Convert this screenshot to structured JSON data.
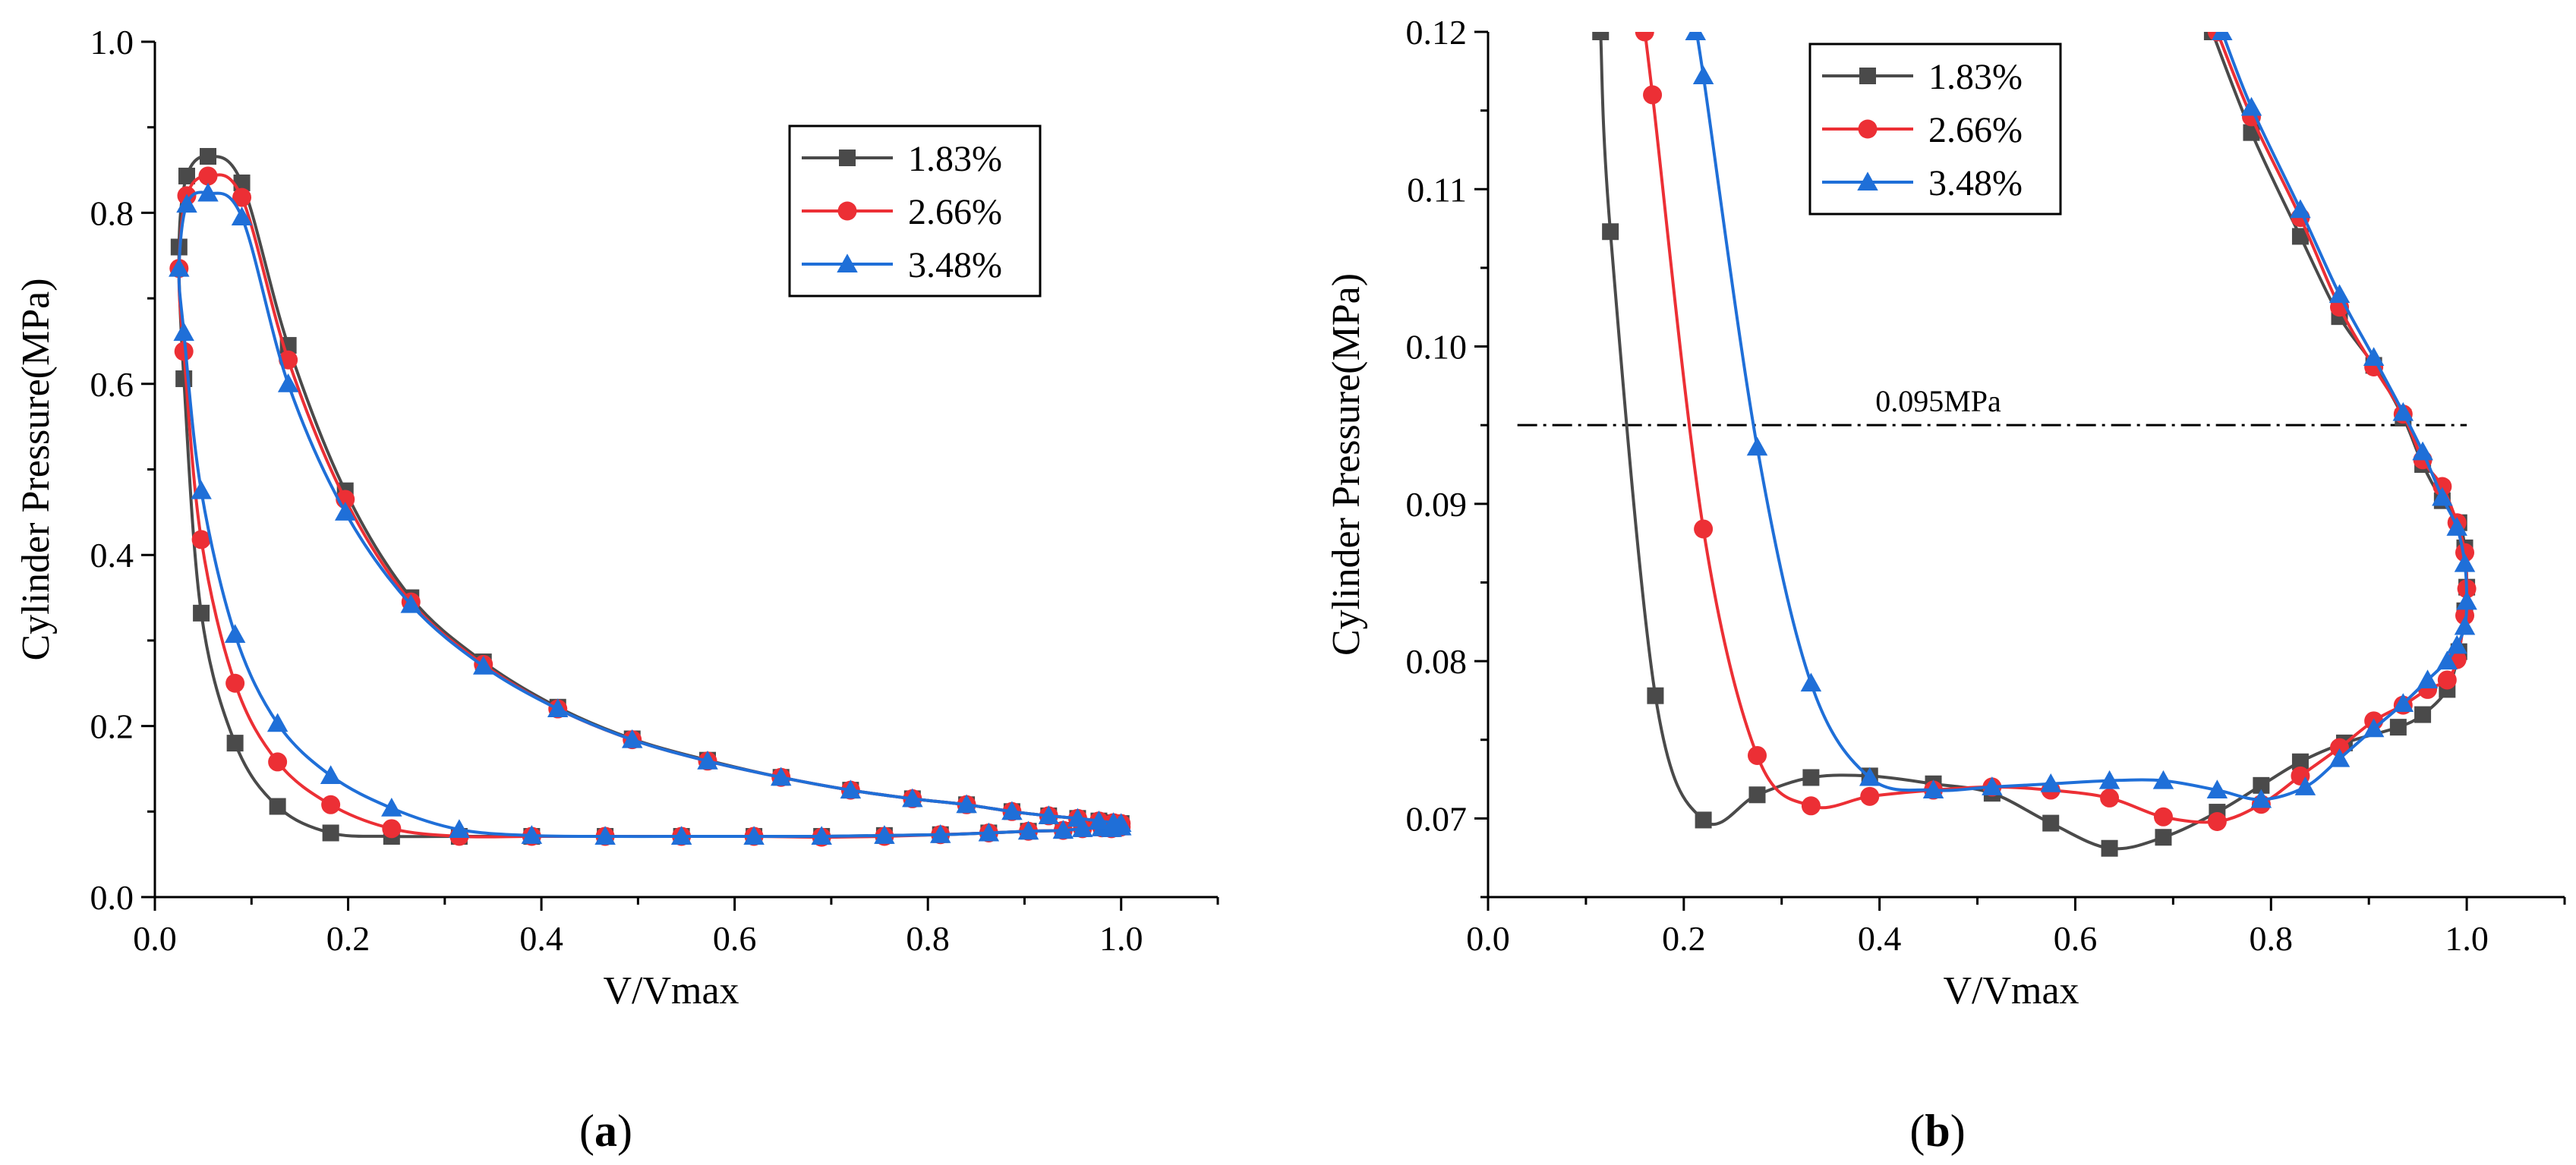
{
  "colors": {
    "series_1": "#4a4a4a",
    "series_2": "#ec2f35",
    "series_3": "#1f6fd8"
  },
  "chart_data": [
    {
      "type": "line",
      "panel_letter": "a",
      "xlabel": "V/Vmax",
      "ylabel": "Cylinder Pressure(MPa)",
      "xlim": [
        0.0,
        1.1
      ],
      "ylim": [
        0.0,
        1.0
      ],
      "x_ticks": [
        "0.0",
        "0.2",
        "0.4",
        "0.6",
        "0.8",
        "1.0"
      ],
      "y_ticks": [
        "0.0",
        "0.2",
        "0.4",
        "0.6",
        "0.8",
        "1.0"
      ],
      "grid": false,
      "legend_position": "top-right",
      "series": [
        {
          "name": "1.83%",
          "marker": "square",
          "points": [
            [
              1.0,
              0.082
            ],
            [
              0.998,
              0.083
            ],
            [
              0.99,
              0.08
            ],
            [
              0.98,
              0.081
            ],
            [
              0.96,
              0.08
            ],
            [
              0.94,
              0.078
            ],
            [
              0.904,
              0.077
            ],
            [
              0.863,
              0.075
            ],
            [
              0.813,
              0.073
            ],
            [
              0.755,
              0.072
            ],
            [
              0.69,
              0.071
            ],
            [
              0.62,
              0.071
            ],
            [
              0.545,
              0.071
            ],
            [
              0.466,
              0.071
            ],
            [
              0.39,
              0.071
            ],
            [
              0.315,
              0.071
            ],
            [
              0.245,
              0.071
            ],
            [
              0.182,
              0.075
            ],
            [
              0.127,
              0.106
            ],
            [
              0.083,
              0.18
            ],
            [
              0.048,
              0.332
            ],
            [
              0.03,
              0.606
            ],
            [
              0.025,
              0.76
            ],
            [
              0.033,
              0.843
            ],
            [
              0.055,
              0.866
            ],
            [
              0.09,
              0.835
            ],
            [
              0.138,
              0.645
            ],
            [
              0.197,
              0.475
            ],
            [
              0.265,
              0.35
            ],
            [
              0.34,
              0.275
            ],
            [
              0.417,
              0.222
            ],
            [
              0.494,
              0.185
            ],
            [
              0.572,
              0.16
            ],
            [
              0.648,
              0.14
            ],
            [
              0.72,
              0.125
            ],
            [
              0.784,
              0.115
            ],
            [
              0.84,
              0.108
            ],
            [
              0.887,
              0.1
            ],
            [
              0.925,
              0.095
            ],
            [
              0.955,
              0.092
            ],
            [
              0.977,
              0.089
            ],
            [
              0.992,
              0.087
            ],
            [
              1.0,
              0.086
            ]
          ]
        },
        {
          "name": "2.66%",
          "marker": "circle",
          "points": [
            [
              1.0,
              0.082
            ],
            [
              0.998,
              0.083
            ],
            [
              0.99,
              0.08
            ],
            [
              0.98,
              0.081
            ],
            [
              0.96,
              0.08
            ],
            [
              0.94,
              0.078
            ],
            [
              0.904,
              0.077
            ],
            [
              0.863,
              0.075
            ],
            [
              0.813,
              0.073
            ],
            [
              0.755,
              0.071
            ],
            [
              0.69,
              0.07
            ],
            [
              0.62,
              0.071
            ],
            [
              0.545,
              0.071
            ],
            [
              0.466,
              0.071
            ],
            [
              0.39,
              0.071
            ],
            [
              0.315,
              0.071
            ],
            [
              0.245,
              0.08
            ],
            [
              0.182,
              0.108
            ],
            [
              0.127,
              0.158
            ],
            [
              0.083,
              0.25
            ],
            [
              0.048,
              0.418
            ],
            [
              0.03,
              0.638
            ],
            [
              0.025,
              0.735
            ],
            [
              0.033,
              0.82
            ],
            [
              0.055,
              0.843
            ],
            [
              0.09,
              0.818
            ],
            [
              0.138,
              0.628
            ],
            [
              0.197,
              0.465
            ],
            [
              0.265,
              0.345
            ],
            [
              0.34,
              0.272
            ],
            [
              0.417,
              0.22
            ],
            [
              0.494,
              0.184
            ],
            [
              0.572,
              0.159
            ],
            [
              0.648,
              0.14
            ],
            [
              0.72,
              0.125
            ],
            [
              0.784,
              0.115
            ],
            [
              0.84,
              0.108
            ],
            [
              0.887,
              0.1
            ],
            [
              0.925,
              0.095
            ],
            [
              0.955,
              0.092
            ],
            [
              0.977,
              0.089
            ],
            [
              0.992,
              0.087
            ],
            [
              1.0,
              0.086
            ]
          ]
        },
        {
          "name": "3.48%",
          "marker": "triangle",
          "points": [
            [
              1.0,
              0.082
            ],
            [
              0.998,
              0.083
            ],
            [
              0.99,
              0.08
            ],
            [
              0.98,
              0.081
            ],
            [
              0.96,
              0.08
            ],
            [
              0.94,
              0.078
            ],
            [
              0.904,
              0.077
            ],
            [
              0.863,
              0.075
            ],
            [
              0.813,
              0.073
            ],
            [
              0.755,
              0.072
            ],
            [
              0.69,
              0.071
            ],
            [
              0.62,
              0.071
            ],
            [
              0.545,
              0.071
            ],
            [
              0.466,
              0.071
            ],
            [
              0.39,
              0.072
            ],
            [
              0.315,
              0.079
            ],
            [
              0.245,
              0.104
            ],
            [
              0.182,
              0.142
            ],
            [
              0.127,
              0.203
            ],
            [
              0.083,
              0.307
            ],
            [
              0.048,
              0.475
            ],
            [
              0.03,
              0.66
            ],
            [
              0.025,
              0.735
            ],
            [
              0.033,
              0.81
            ],
            [
              0.055,
              0.823
            ],
            [
              0.09,
              0.795
            ],
            [
              0.138,
              0.6
            ],
            [
              0.197,
              0.45
            ],
            [
              0.265,
              0.342
            ],
            [
              0.34,
              0.27
            ],
            [
              0.417,
              0.22
            ],
            [
              0.494,
              0.184
            ],
            [
              0.572,
              0.159
            ],
            [
              0.648,
              0.14
            ],
            [
              0.72,
              0.125
            ],
            [
              0.784,
              0.115
            ],
            [
              0.84,
              0.108
            ],
            [
              0.887,
              0.1
            ],
            [
              0.925,
              0.095
            ],
            [
              0.955,
              0.092
            ],
            [
              0.977,
              0.089
            ],
            [
              0.992,
              0.087
            ],
            [
              1.0,
              0.086
            ]
          ]
        }
      ]
    },
    {
      "type": "line",
      "panel_letter": "b",
      "xlabel": "V/Vmax",
      "ylabel": "Cylinder Pressure(MPa)",
      "xlim": [
        0.0,
        1.1
      ],
      "ylim": [
        0.065,
        0.12
      ],
      "x_ticks": [
        "0.0",
        "0.2",
        "0.4",
        "0.6",
        "0.8",
        "1.0"
      ],
      "y_ticks": [
        "0.07",
        "0.08",
        "0.09",
        "0.10",
        "0.11",
        "0.12"
      ],
      "grid": false,
      "legend_position": "top-left",
      "annotation": {
        "text": "0.095MPa",
        "y": 0.095,
        "x_range": [
          0.03,
          1.0
        ]
      },
      "series": [
        {
          "name": "1.83%",
          "marker": "square",
          "points": [
            [
              0.115,
              0.12
            ],
            [
              0.125,
              0.1073
            ],
            [
              0.171,
              0.0778
            ],
            [
              0.22,
              0.0699
            ],
            [
              0.275,
              0.0715
            ],
            [
              0.33,
              0.0726
            ],
            [
              0.39,
              0.0727
            ],
            [
              0.455,
              0.0722
            ],
            [
              0.515,
              0.0716
            ],
            [
              0.575,
              0.0697
            ],
            [
              0.635,
              0.0681
            ],
            [
              0.69,
              0.0688
            ],
            [
              0.745,
              0.0704
            ],
            [
              0.79,
              0.0721
            ],
            [
              0.83,
              0.0736
            ],
            [
              0.875,
              0.0748
            ],
            [
              0.93,
              0.0758
            ],
            [
              0.955,
              0.0766
            ],
            [
              0.98,
              0.0782
            ],
            [
              0.992,
              0.0806
            ],
            [
              0.998,
              0.0832
            ],
            [
              1.0,
              0.0847
            ],
            [
              0.998,
              0.0872
            ],
            [
              0.992,
              0.0888
            ],
            [
              0.975,
              0.0902
            ],
            [
              0.955,
              0.0925
            ],
            [
              0.935,
              0.0955
            ],
            [
              0.905,
              0.0988
            ],
            [
              0.87,
              0.1019
            ],
            [
              0.83,
              0.107
            ],
            [
              0.78,
              0.1136
            ],
            [
              0.74,
              0.12
            ]
          ]
        },
        {
          "name": "2.66%",
          "marker": "circle",
          "points": [
            [
              0.16,
              0.12
            ],
            [
              0.168,
              0.116
            ],
            [
              0.22,
              0.0884
            ],
            [
              0.275,
              0.074
            ],
            [
              0.33,
              0.0708
            ],
            [
              0.39,
              0.0714
            ],
            [
              0.455,
              0.0718
            ],
            [
              0.515,
              0.072
            ],
            [
              0.575,
              0.0718
            ],
            [
              0.635,
              0.0713
            ],
            [
              0.69,
              0.0701
            ],
            [
              0.745,
              0.0698
            ],
            [
              0.79,
              0.0709
            ],
            [
              0.83,
              0.0727
            ],
            [
              0.87,
              0.0745
            ],
            [
              0.905,
              0.0762
            ],
            [
              0.935,
              0.0772
            ],
            [
              0.96,
              0.0782
            ],
            [
              0.98,
              0.0788
            ],
            [
              0.99,
              0.0801
            ],
            [
              0.998,
              0.0829
            ],
            [
              1.0,
              0.0846
            ],
            [
              0.998,
              0.0869
            ],
            [
              0.99,
              0.0888
            ],
            [
              0.975,
              0.0911
            ],
            [
              0.955,
              0.0928
            ],
            [
              0.935,
              0.0957
            ],
            [
              0.905,
              0.0987
            ],
            [
              0.87,
              0.1025
            ],
            [
              0.83,
              0.1082
            ],
            [
              0.78,
              0.1146
            ],
            [
              0.745,
              0.12
            ]
          ]
        },
        {
          "name": "3.48%",
          "marker": "triangle",
          "points": [
            [
              0.212,
              0.12
            ],
            [
              0.22,
              0.1172
            ],
            [
              0.275,
              0.0936
            ],
            [
              0.33,
              0.0786
            ],
            [
              0.39,
              0.0726
            ],
            [
              0.455,
              0.0718
            ],
            [
              0.515,
              0.072
            ],
            [
              0.575,
              0.0722
            ],
            [
              0.635,
              0.0724
            ],
            [
              0.69,
              0.0724
            ],
            [
              0.745,
              0.0718
            ],
            [
              0.79,
              0.0712
            ],
            [
              0.835,
              0.072
            ],
            [
              0.87,
              0.0738
            ],
            [
              0.905,
              0.0757
            ],
            [
              0.935,
              0.0773
            ],
            [
              0.96,
              0.0788
            ],
            [
              0.98,
              0.08
            ],
            [
              0.99,
              0.081
            ],
            [
              0.998,
              0.0822
            ],
            [
              1.0,
              0.0838
            ],
            [
              0.998,
              0.0862
            ],
            [
              0.99,
              0.0885
            ],
            [
              0.975,
              0.0904
            ],
            [
              0.955,
              0.0933
            ],
            [
              0.935,
              0.0958
            ],
            [
              0.905,
              0.0993
            ],
            [
              0.87,
              0.1033
            ],
            [
              0.83,
              0.1087
            ],
            [
              0.78,
              0.1152
            ],
            [
              0.75,
              0.12
            ]
          ]
        }
      ]
    }
  ]
}
